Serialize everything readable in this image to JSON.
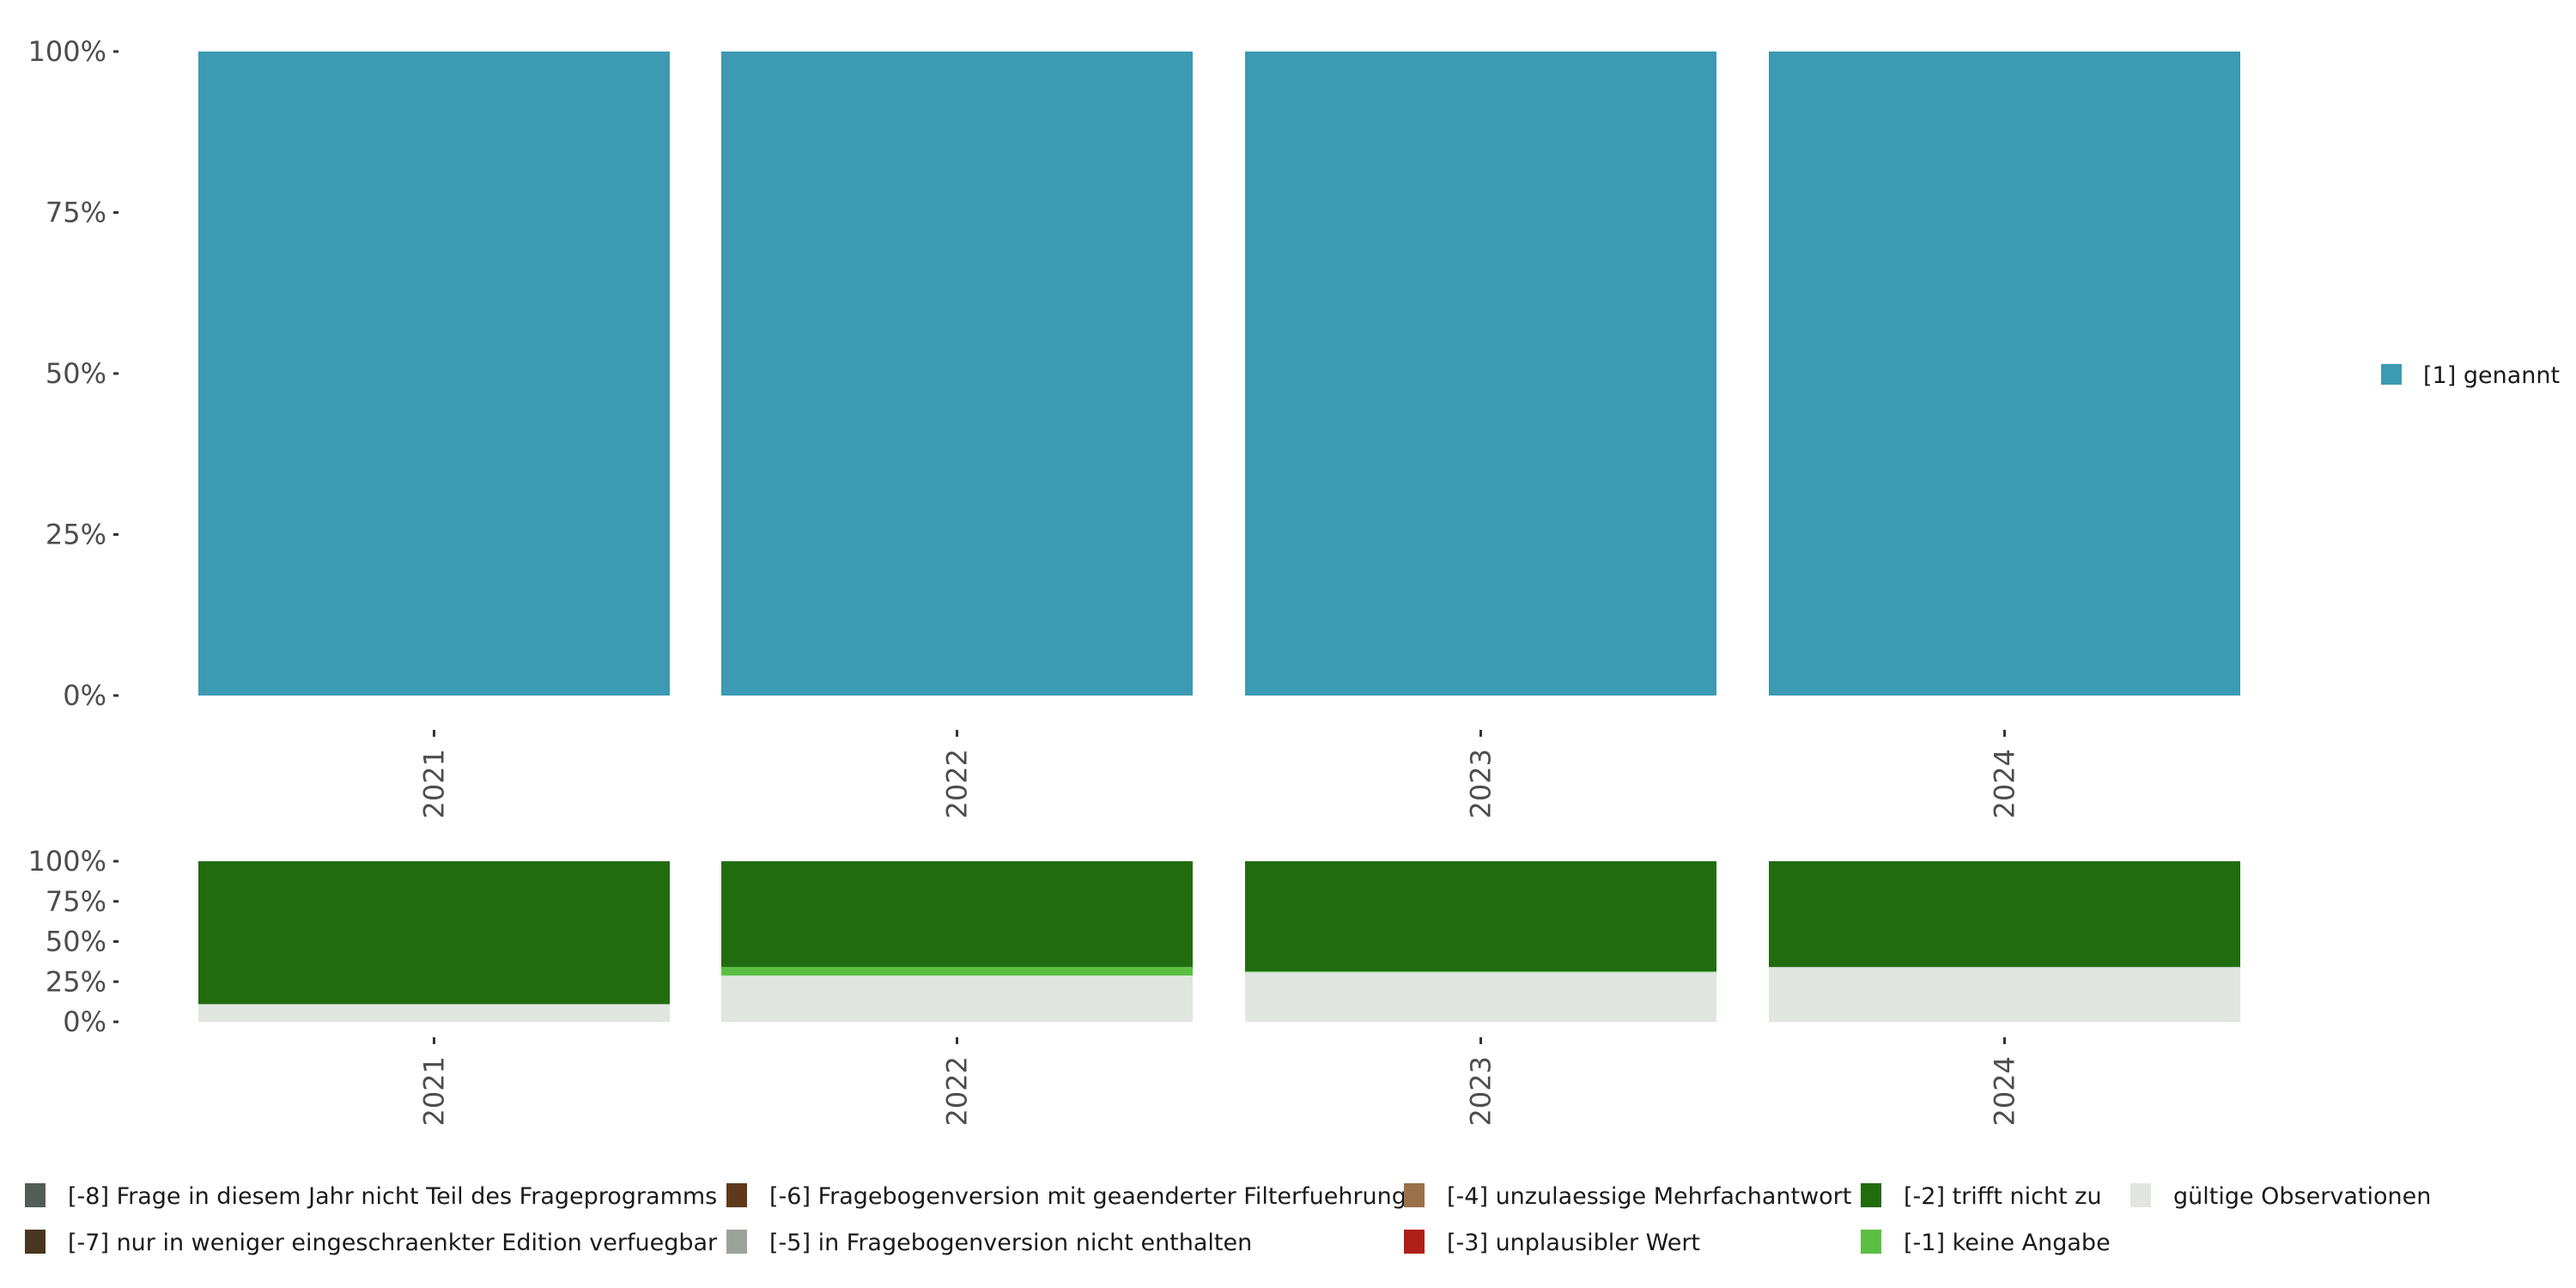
{
  "chart_data": [
    {
      "type": "bar",
      "stacked": true,
      "name": "top-panel",
      "categories": [
        "2021",
        "2022",
        "2023",
        "2024"
      ],
      "ylim": [
        0,
        100
      ],
      "yticks": [
        "0%",
        "25%",
        "50%",
        "75%",
        "100%"
      ],
      "xlabel": "",
      "ylabel": "",
      "legend_position": "right",
      "series": [
        {
          "name": "[1] genannt",
          "color": "#3c9ab2",
          "values": [
            100,
            100,
            100,
            100
          ]
        }
      ]
    },
    {
      "type": "bar",
      "stacked": true,
      "name": "bottom-panel",
      "categories": [
        "2021",
        "2022",
        "2023",
        "2024"
      ],
      "ylim": [
        0,
        100
      ],
      "yticks": [
        "0%",
        "25%",
        "50%",
        "75%",
        "100%"
      ],
      "xlabel": "",
      "ylabel": "",
      "legend_position": "bottom",
      "series": [
        {
          "name": "gültige Observationen",
          "color": "#e1e6e0",
          "values": [
            11,
            28.8,
            30.9,
            34.1
          ]
        },
        {
          "name": "[-1] keine Angabe",
          "color": "#5cbf44",
          "values": [
            0,
            5.3,
            0.5,
            0
          ]
        },
        {
          "name": "[-2] trifft nicht zu",
          "color": "#226c10",
          "values": [
            89,
            65.9,
            68.6,
            65.9
          ]
        }
      ],
      "legend": [
        {
          "name": "[-8] Frage in diesem Jahr nicht Teil des Frageprogramms",
          "color": "#535d58"
        },
        {
          "name": "[-7] nur in weniger eingeschraenkter Edition verfuegbar",
          "color": "#4a3520"
        },
        {
          "name": "[-6] Fragebogenversion mit geaenderter Filterfuehrung",
          "color": "#5e3a1a"
        },
        {
          "name": "[-5] in Fragebogenversion nicht enthalten",
          "color": "#9ba29a"
        },
        {
          "name": "[-4] unzulaessige Mehrfachantwort",
          "color": "#98704a"
        },
        {
          "name": "[-3] unplausibler Wert",
          "color": "#b0201a"
        },
        {
          "name": "[-2] trifft nicht zu",
          "color": "#226c10"
        },
        {
          "name": "[-1] keine Angabe",
          "color": "#5cbf44"
        },
        {
          "name": "gültige Observationen",
          "color": "#e1e6e0"
        }
      ]
    }
  ]
}
